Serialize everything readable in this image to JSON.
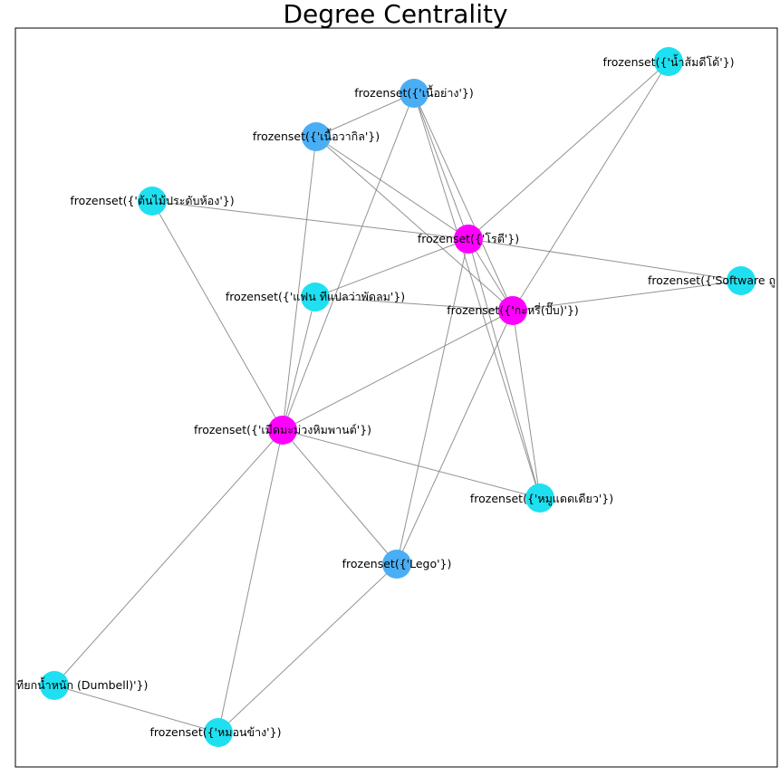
{
  "title": "Degree Centrality",
  "colors": {
    "background": "#ffffff",
    "frame": "#000000",
    "edge": "#808080",
    "high": "#ff00ff",
    "mid": "#4aaef5",
    "low": "#1ee0f0"
  },
  "nodes": [
    {
      "id": "durian_monthong",
      "label": "frozenset({'เมีดมะม่วงหิมพานต์'})",
      "level": "high"
    },
    {
      "id": "roti",
      "label": "frozenset({'โรตี'})",
      "level": "high"
    },
    {
      "id": "kraprao",
      "label": "frozenset({'กะหรี่(ปั๊บ)'})",
      "level": "high"
    },
    {
      "id": "nuea_yang",
      "label": "frozenset({'เนื้อย่าง'})",
      "level": "mid"
    },
    {
      "id": "nuea_wagyu",
      "label": "frozenset({'เนื้อวากิล'})",
      "level": "mid"
    },
    {
      "id": "lego",
      "label": "frozenset({'Lego'})",
      "level": "mid"
    },
    {
      "id": "nam_som",
      "label": "frozenset({'น้ำส้มดีโด้'})",
      "level": "low"
    },
    {
      "id": "ton_mai",
      "label": "frozenset({'ต้นไม้ประดับห้อง'})",
      "level": "low"
    },
    {
      "id": "software",
      "label": "frozenset({'Software ถู",
      "level": "low"
    },
    {
      "id": "fan",
      "label": "frozenset({'แฟน ทีแปลว่าพัดลม'})",
      "level": "low"
    },
    {
      "id": "moo_dad",
      "label": "frozenset({'หมูแดดเดียว'})",
      "level": "low"
    },
    {
      "id": "dumbell",
      "label": "ทียกน้ำหนัก (Dumbell)'})",
      "level": "low"
    },
    {
      "id": "mon_khang",
      "label": "frozenset({'หมอนข้าง'})",
      "level": "low"
    }
  ],
  "edges": [
    [
      "nuea_yang",
      "nuea_wagyu"
    ],
    [
      "nuea_yang",
      "roti"
    ],
    [
      "nuea_yang",
      "kraprao"
    ],
    [
      "nuea_yang",
      "durian_monthong"
    ],
    [
      "nuea_yang",
      "moo_dad"
    ],
    [
      "nuea_wagyu",
      "roti"
    ],
    [
      "nuea_wagyu",
      "kraprao"
    ],
    [
      "nuea_wagyu",
      "durian_monthong"
    ],
    [
      "nam_som",
      "roti"
    ],
    [
      "nam_som",
      "kraprao"
    ],
    [
      "ton_mai",
      "roti"
    ],
    [
      "ton_mai",
      "durian_monthong"
    ],
    [
      "software",
      "roti"
    ],
    [
      "software",
      "kraprao"
    ],
    [
      "fan",
      "roti"
    ],
    [
      "fan",
      "kraprao"
    ],
    [
      "fan",
      "durian_monthong"
    ],
    [
      "roti",
      "kraprao"
    ],
    [
      "roti",
      "lego"
    ],
    [
      "roti",
      "moo_dad"
    ],
    [
      "kraprao",
      "durian_monthong"
    ],
    [
      "kraprao",
      "lego"
    ],
    [
      "kraprao",
      "moo_dad"
    ],
    [
      "durian_monthong",
      "moo_dad"
    ],
    [
      "durian_monthong",
      "lego"
    ],
    [
      "durian_monthong",
      "dumbell"
    ],
    [
      "durian_monthong",
      "mon_khang"
    ],
    [
      "lego",
      "mon_khang"
    ],
    [
      "dumbell",
      "mon_khang"
    ]
  ]
}
